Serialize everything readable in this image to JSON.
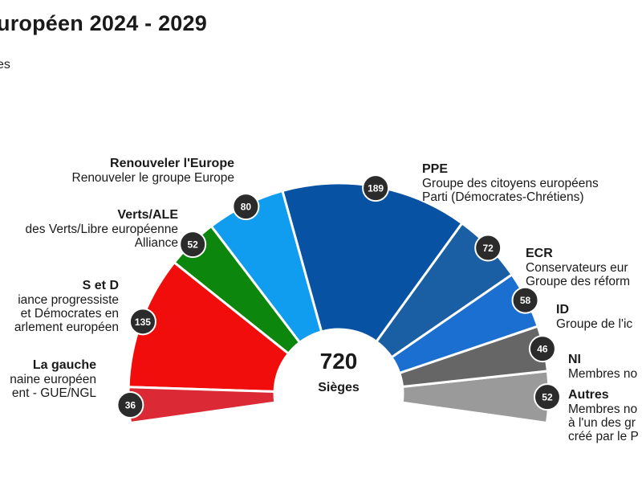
{
  "header": {
    "title": "uropéen 2024 - 2029",
    "subtitle": "es"
  },
  "chart_data": {
    "type": "parliament-hemicycle",
    "total_seats": 720,
    "center_label": "720",
    "center_sublabel": "Sièges",
    "groups": [
      {
        "key": "other",
        "short": "Autres",
        "lines": [
          "Membres no",
          "à l'un des gr",
          "créé par le P"
        ],
        "seats": 52,
        "color": "#9a9a9a"
      },
      {
        "key": "ni",
        "short": "NI",
        "lines": [
          "Membres no"
        ],
        "seats": 46,
        "color": "#666666"
      },
      {
        "key": "id",
        "short": "ID",
        "lines": [
          "Groupe de l'ic"
        ],
        "seats": 58,
        "color": "#1b6fd0"
      },
      {
        "key": "ecr",
        "short": "ECR",
        "lines": [
          "Conservateurs eur",
          "Groupe des réform"
        ],
        "seats": 72,
        "color": "#1a5fa3"
      },
      {
        "key": "epp",
        "short": "PPE",
        "lines": [
          "Groupe des citoyens européens",
          "Parti (Démocrates-Chrétiens)"
        ],
        "seats": 189,
        "color": "#0752a3"
      },
      {
        "key": "renew",
        "short": "Renouveler l'Europe",
        "lines": [
          "Renouveler le groupe Europe"
        ],
        "seats": 80,
        "color": "#109cef"
      },
      {
        "key": "greens",
        "short": "Verts/ALE",
        "lines": [
          "des Verts/Libre européenne",
          "Alliance"
        ],
        "seats": 52,
        "color": "#0c860c"
      },
      {
        "key": "sd",
        "short": "S et D",
        "lines": [
          "iance progressiste",
          "et Démocrates en",
          "arlement européen"
        ],
        "seats": 135,
        "color": "#f20d0d"
      },
      {
        "key": "left",
        "short": "La gauche",
        "lines": [
          "naine européen",
          "ent - GUE/NGL"
        ],
        "seats": 36,
        "color": "#db2a35"
      }
    ]
  }
}
